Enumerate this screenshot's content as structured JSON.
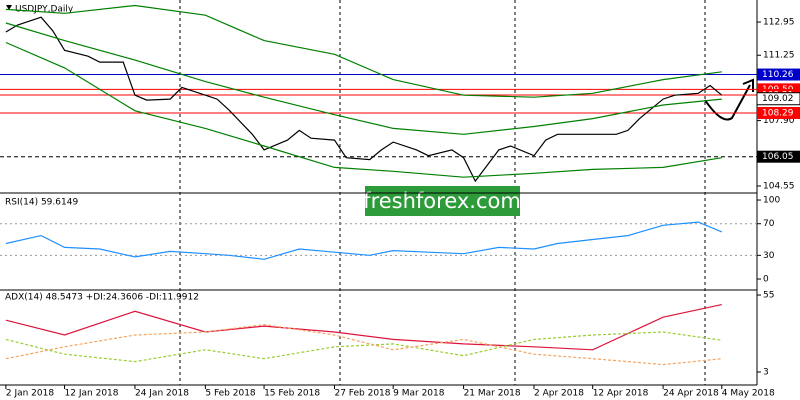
{
  "chart_data": [
    {
      "type": "line",
      "title": "USDJPY,Daily",
      "watermark": "freshforex.com",
      "xlim": [
        "2018-01-01",
        "2018-05-10"
      ],
      "ylim": [
        104.19,
        114.08
      ],
      "yticks": [
        112.95,
        111.25,
        {
          "value": 107.9,
          "label": "107.90"
        },
        104.55
      ],
      "current_price": 109.02,
      "levels": [
        {
          "value": 110.26,
          "color": "#0000cd"
        },
        {
          "value": 109.5,
          "label": "109.50",
          "color": "#ff0000"
        },
        {
          "value": 109.21,
          "color": "#ff0000"
        },
        {
          "value": 108.29,
          "color": "#ff0000"
        },
        {
          "value": 106.05,
          "color": "#000000",
          "dashed": true
        }
      ],
      "series": [
        {
          "color": "#000000",
          "x": [
            "2018-01-02",
            "2018-01-04",
            "2018-01-08",
            "2018-01-10",
            "2018-01-12",
            "2018-01-16",
            "2018-01-18",
            "2018-01-22",
            "2018-01-24",
            "2018-01-26",
            "2018-01-30",
            "2018-02-01",
            "2018-02-05",
            "2018-02-07",
            "2018-02-09",
            "2018-02-13",
            "2018-02-15",
            "2018-02-19",
            "2018-02-21",
            "2018-02-23",
            "2018-02-27",
            "2018-03-01",
            "2018-03-05",
            "2018-03-07",
            "2018-03-09",
            "2018-03-13",
            "2018-03-15",
            "2018-03-19",
            "2018-03-21",
            "2018-03-23",
            "2018-03-27",
            "2018-03-29",
            "2018-04-02",
            "2018-04-04",
            "2018-04-06",
            "2018-04-10",
            "2018-04-12",
            "2018-04-16",
            "2018-04-18",
            "2018-04-20",
            "2018-04-24",
            "2018-04-26",
            "2018-04-30",
            "2018-05-02",
            "2018-05-04"
          ],
          "values": [
            112.44,
            112.8,
            113.2,
            112.5,
            111.5,
            111.2,
            110.9,
            110.9,
            109.2,
            108.95,
            109.0,
            109.6,
            109.2,
            109.0,
            108.45,
            107.2,
            106.4,
            106.9,
            107.4,
            107.0,
            106.9,
            106.0,
            105.9,
            106.4,
            106.8,
            106.4,
            106.1,
            106.4,
            106.0,
            104.8,
            106.4,
            106.6,
            106.1,
            106.9,
            107.2,
            107.2,
            107.2,
            107.2,
            107.4,
            108.0,
            109.0,
            109.2,
            109.3,
            109.7,
            109.2
          ]
        },
        {
          "color": "#008000",
          "x": [
            "2018-01-02",
            "2018-01-12",
            "2018-01-24",
            "2018-02-05",
            "2018-02-15",
            "2018-02-27",
            "2018-03-09",
            "2018-03-21",
            "2018-04-02",
            "2018-04-12",
            "2018-04-24",
            "2018-05-04"
          ],
          "values": [
            113.6,
            113.4,
            113.8,
            113.3,
            112.0,
            111.3,
            110.0,
            109.2,
            109.1,
            109.3,
            110.0,
            110.4
          ]
        },
        {
          "color": "#008000",
          "x": [
            "2018-01-02",
            "2018-01-12",
            "2018-01-24",
            "2018-02-05",
            "2018-02-15",
            "2018-02-27",
            "2018-03-09",
            "2018-03-21",
            "2018-04-02",
            "2018-04-12",
            "2018-04-24",
            "2018-05-04"
          ],
          "values": [
            112.9,
            112.0,
            111.0,
            109.9,
            109.1,
            108.2,
            107.5,
            107.2,
            107.6,
            108.0,
            108.7,
            109.0
          ]
        },
        {
          "color": "#008000",
          "x": [
            "2018-01-02",
            "2018-01-12",
            "2018-01-24",
            "2018-02-05",
            "2018-02-15",
            "2018-02-27",
            "2018-03-09",
            "2018-03-21",
            "2018-04-02",
            "2018-04-12",
            "2018-04-24",
            "2018-05-04"
          ],
          "values": [
            111.9,
            110.6,
            108.4,
            107.5,
            106.6,
            105.5,
            105.3,
            105.0,
            105.2,
            105.4,
            105.5,
            106.0
          ]
        }
      ]
    },
    {
      "type": "line",
      "title": "RSI(14) 59.6149",
      "xlim": [
        "2018-01-01",
        "2018-05-10"
      ],
      "ylim": [
        -13.9,
        108.9
      ],
      "yticks": [
        100,
        70,
        30,
        0
      ],
      "levels": [
        70,
        30
      ],
      "series": [
        {
          "color": "#1e90ff",
          "x": [
            "2018-01-02",
            "2018-01-08",
            "2018-01-12",
            "2018-01-18",
            "2018-01-24",
            "2018-01-30",
            "2018-02-05",
            "2018-02-09",
            "2018-02-15",
            "2018-02-21",
            "2018-02-27",
            "2018-03-05",
            "2018-03-09",
            "2018-03-15",
            "2018-03-21",
            "2018-03-27",
            "2018-04-02",
            "2018-04-06",
            "2018-04-12",
            "2018-04-18",
            "2018-04-24",
            "2018-04-30",
            "2018-05-04"
          ],
          "values": [
            45,
            55,
            40,
            38,
            28,
            35,
            32,
            30,
            25,
            38,
            34,
            30,
            36,
            34,
            32,
            40,
            38,
            45,
            50,
            55,
            68,
            72,
            59.6
          ]
        }
      ]
    },
    {
      "type": "line",
      "title": "ADX(14) 48.5473 +DI:24.3606 -DI:11.9912",
      "xlim": [
        "2018-01-01",
        "2018-05-10"
      ],
      "ylim": [
        -5.8,
        58.4
      ],
      "yticks": [
        55,
        3
      ],
      "xticks": [
        {
          "value": "2018-01-02",
          "label": "2 Jan 2018"
        },
        {
          "value": "2018-01-12",
          "label": "12 Jan 2018"
        },
        {
          "value": "2018-01-24",
          "label": "24 Jan 2018"
        },
        {
          "value": "2018-02-05",
          "label": "5 Feb 2018"
        },
        {
          "value": "2018-02-15",
          "label": "15 Feb 2018"
        },
        {
          "value": "2018-02-27",
          "label": "27 Feb 2018"
        },
        {
          "value": "2018-03-09",
          "label": "9 Mar 2018"
        },
        {
          "value": "2018-03-21",
          "label": "21 Mar 2018"
        },
        {
          "value": "2018-04-02",
          "label": "2 Apr 2018"
        },
        {
          "value": "2018-04-12",
          "label": "12 Apr 2018"
        },
        {
          "value": "2018-04-24",
          "label": "24 Apr 2018"
        },
        {
          "value": "2018-05-04",
          "label": "4 May 2018"
        }
      ],
      "series": [
        {
          "color": "#dc143c",
          "x": [
            "2018-01-02",
            "2018-01-12",
            "2018-01-24",
            "2018-02-05",
            "2018-02-15",
            "2018-02-27",
            "2018-03-09",
            "2018-03-21",
            "2018-04-02",
            "2018-04-12",
            "2018-04-24",
            "2018-05-04"
          ],
          "values": [
            38,
            28,
            44,
            30,
            34,
            30,
            25,
            22,
            20,
            18,
            40,
            48.5
          ]
        },
        {
          "color": "#9acd32",
          "dashed": true,
          "x": [
            "2018-01-02",
            "2018-01-12",
            "2018-01-24",
            "2018-02-05",
            "2018-02-15",
            "2018-02-27",
            "2018-03-09",
            "2018-03-21",
            "2018-04-02",
            "2018-04-12",
            "2018-04-24",
            "2018-05-04"
          ],
          "values": [
            25,
            15,
            10,
            18,
            12,
            20,
            22,
            14,
            25,
            28,
            30,
            24.4
          ]
        },
        {
          "color": "#f4a460",
          "dashed": true,
          "x": [
            "2018-01-02",
            "2018-01-12",
            "2018-01-24",
            "2018-02-05",
            "2018-02-15",
            "2018-02-27",
            "2018-03-09",
            "2018-03-21",
            "2018-04-02",
            "2018-04-12",
            "2018-04-24",
            "2018-05-04"
          ],
          "values": [
            12,
            20,
            28,
            30,
            35,
            28,
            18,
            25,
            15,
            12,
            8,
            12
          ]
        }
      ]
    }
  ]
}
